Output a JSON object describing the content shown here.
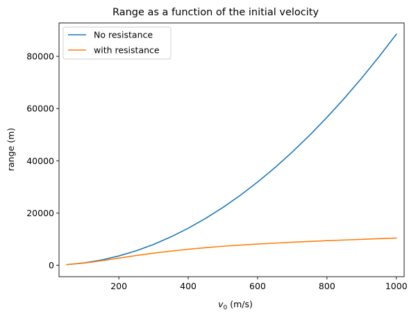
{
  "chart_data": {
    "type": "line",
    "title": "Range as a function of the initial velocity",
    "xlabel_symbol": "v",
    "xlabel_subscript": "0",
    "xlabel_unit": " (m/s)",
    "ylabel": "range (m)",
    "xlim": [
      27.5,
      1022.5
    ],
    "ylim": [
      -4400,
      92800
    ],
    "xticks": [
      200,
      400,
      600,
      800,
      1000
    ],
    "yticks": [
      0,
      20000,
      40000,
      60000,
      80000
    ],
    "grid": false,
    "legend_position": "top-left",
    "x": [
      50,
      100,
      150,
      200,
      250,
      300,
      350,
      400,
      450,
      500,
      550,
      600,
      650,
      700,
      750,
      800,
      850,
      900,
      950,
      1000
    ],
    "series": [
      {
        "name": "No resistance",
        "color": "#1f77b4",
        "values": [
          221,
          885,
          1991,
          3539,
          5530,
          7963,
          10839,
          14157,
          17917,
          22120,
          26765,
          31853,
          37383,
          43355,
          49770,
          56627,
          63927,
          71669,
          79854,
          88481
        ]
      },
      {
        "name": "with resistance",
        "color": "#ff7f0e",
        "values": [
          215,
          820,
          1690,
          2700,
          3700,
          4600,
          5400,
          6100,
          6700,
          7250,
          7700,
          8100,
          8450,
          8800,
          9100,
          9400,
          9650,
          9900,
          10150,
          10400
        ]
      }
    ]
  }
}
